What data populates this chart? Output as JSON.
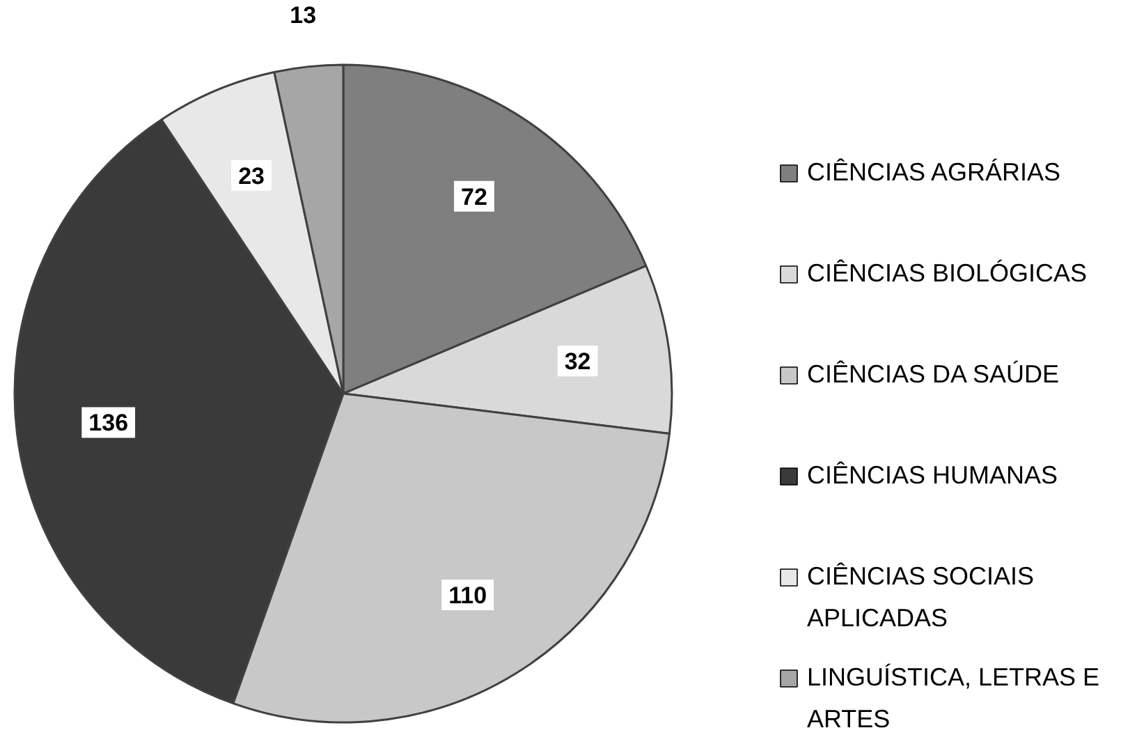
{
  "chart_data": {
    "type": "pie",
    "categories": [
      "CIÊNCIAS AGRÁRIAS",
      "CIÊNCIAS BIOLÓGICAS",
      "CIÊNCIAS DA SAÚDE",
      "CIÊNCIAS HUMANAS",
      "CIÊNCIAS SOCIAIS APLICADAS",
      "LINGUÍSTICA, LETRAS E ARTES"
    ],
    "values": [
      72,
      32,
      110,
      136,
      23,
      13
    ],
    "colors": [
      "#7f7f7f",
      "#d9d9d9",
      "#c8c8c8",
      "#3a3a3a",
      "#e8e8e8",
      "#a6a6a6"
    ],
    "data_labels": true,
    "legend": "right"
  }
}
